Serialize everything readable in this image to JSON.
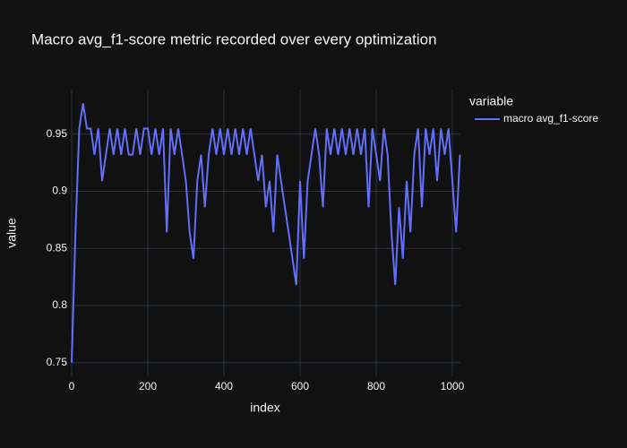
{
  "chart_data": {
    "type": "line",
    "title": "Macro avg_f1-score metric recorded over every optimization",
    "x_label": "index",
    "y_label": "value",
    "legend_title": "variable",
    "xlim": [
      0,
      1020
    ],
    "ylim": [
      0.738,
      0.989
    ],
    "xticks": [
      0,
      200,
      400,
      600,
      800,
      1000
    ],
    "yticks": [
      0.75,
      0.8,
      0.85,
      0.9,
      0.95
    ],
    "grid": true,
    "x": [
      0,
      10,
      20,
      30,
      40,
      50,
      60,
      70,
      80,
      90,
      100,
      110,
      120,
      130,
      140,
      150,
      160,
      170,
      180,
      190,
      200,
      210,
      220,
      230,
      240,
      250,
      260,
      270,
      280,
      290,
      300,
      310,
      320,
      330,
      340,
      350,
      360,
      370,
      380,
      390,
      400,
      410,
      420,
      430,
      440,
      450,
      460,
      470,
      480,
      490,
      500,
      510,
      520,
      530,
      540,
      550,
      560,
      570,
      580,
      590,
      600,
      610,
      620,
      630,
      640,
      650,
      660,
      670,
      680,
      690,
      700,
      710,
      720,
      730,
      740,
      750,
      760,
      770,
      780,
      790,
      800,
      810,
      820,
      830,
      840,
      850,
      860,
      870,
      880,
      890,
      900,
      910,
      920,
      930,
      940,
      950,
      960,
      970,
      980,
      990,
      1000,
      1010,
      1020
    ],
    "series": [
      {
        "name": "macro avg_f1-score",
        "color": "#636efa",
        "values": [
          0.75,
          0.864,
          0.955,
          0.977,
          0.955,
          0.955,
          0.932,
          0.955,
          0.909,
          0.932,
          0.955,
          0.932,
          0.955,
          0.932,
          0.955,
          0.932,
          0.932,
          0.955,
          0.932,
          0.955,
          0.955,
          0.932,
          0.955,
          0.932,
          0.955,
          0.864,
          0.955,
          0.932,
          0.955,
          0.932,
          0.909,
          0.864,
          0.841,
          0.909,
          0.932,
          0.886,
          0.932,
          0.955,
          0.932,
          0.955,
          0.932,
          0.955,
          0.932,
          0.955,
          0.932,
          0.955,
          0.932,
          0.955,
          0.932,
          0.909,
          0.932,
          0.886,
          0.909,
          0.864,
          0.932,
          0.909,
          0.886,
          0.864,
          0.841,
          0.818,
          0.909,
          0.841,
          0.909,
          0.932,
          0.955,
          0.932,
          0.886,
          0.955,
          0.932,
          0.955,
          0.932,
          0.955,
          0.932,
          0.955,
          0.932,
          0.955,
          0.932,
          0.955,
          0.886,
          0.955,
          0.932,
          0.909,
          0.955,
          0.932,
          0.864,
          0.818,
          0.886,
          0.841,
          0.909,
          0.864,
          0.932,
          0.955,
          0.886,
          0.955,
          0.932,
          0.955,
          0.909,
          0.955,
          0.932,
          0.955,
          0.909,
          0.864,
          0.932
        ]
      }
    ]
  }
}
